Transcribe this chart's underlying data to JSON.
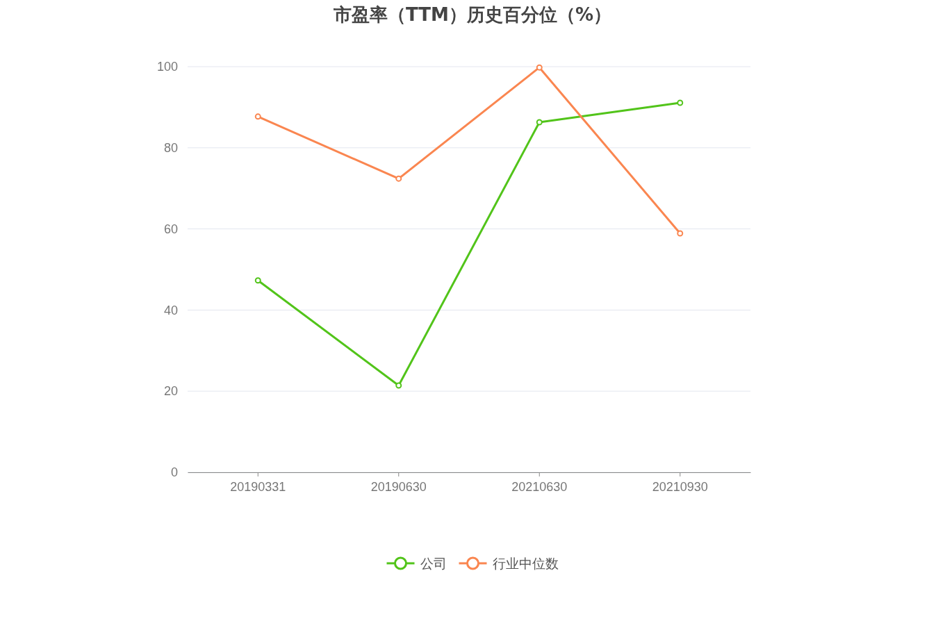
{
  "chart_data": {
    "type": "line",
    "title": "市盈率（TTM）历史百分位（%）",
    "categories": [
      "20190331",
      "20190630",
      "20210630",
      "20210930"
    ],
    "series": [
      {
        "name": "公司",
        "color": "#52c41a",
        "values": [
          47.3,
          21.4,
          86.3,
          91.1
        ]
      },
      {
        "name": "行业中位数",
        "color": "#fa8650",
        "values": [
          87.7,
          72.4,
          99.8,
          58.9
        ]
      }
    ],
    "ylim": [
      0,
      100
    ],
    "yticks": [
      0,
      20,
      40,
      60,
      80,
      100
    ],
    "grid": "y",
    "legend": "bottom",
    "marker": "circle",
    "line_style": "solid"
  }
}
